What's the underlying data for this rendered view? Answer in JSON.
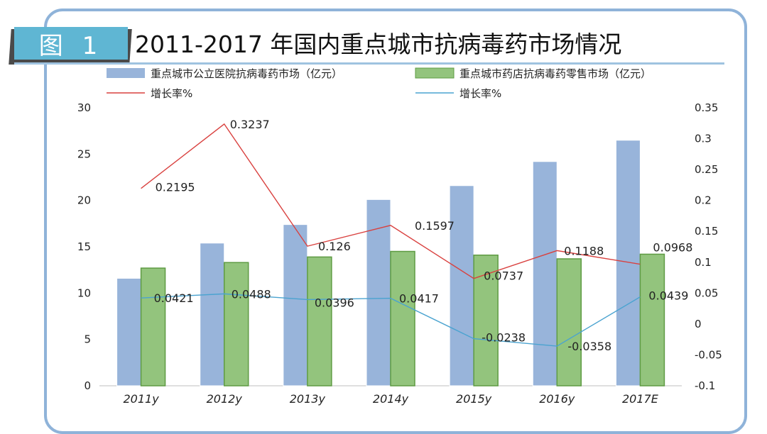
{
  "header": {
    "badge": "图 1",
    "title": "2011-2017 年国内重点城市抗病毒药市场情况"
  },
  "colors": {
    "hospital_bar": "#98b4da",
    "pharmacy_bar": "#93c47d",
    "pharmacy_bar_stroke": "#5e9b43",
    "red_line": "#d9413f",
    "blue_line": "#4aa3d0",
    "badge": "#5fb6d3",
    "frame": "#8fb3d9"
  },
  "chart_data": {
    "type": "bar",
    "categories": [
      "2011y",
      "2012y",
      "2013y",
      "2014y",
      "2015y",
      "2016y",
      "2017E"
    ],
    "series": [
      {
        "name": "重点城市公立医院抗病毒药市场（亿元）",
        "kind": "bar",
        "axis": "left",
        "values": [
          11.6,
          15.4,
          17.4,
          20.1,
          21.6,
          24.2,
          26.5
        ]
      },
      {
        "name": "重点城市药店抗病毒药零售市场（亿元）",
        "kind": "bar",
        "axis": "left",
        "values": [
          12.7,
          13.3,
          13.9,
          14.5,
          14.1,
          13.7,
          14.2
        ]
      },
      {
        "name": "增长率%",
        "kind": "line",
        "axis": "right",
        "color": "red",
        "values": [
          0.2195,
          0.3237,
          0.126,
          0.1597,
          0.0737,
          0.1188,
          0.0968
        ],
        "labels": [
          "0.2195",
          "0.3237",
          "0.126",
          "0.1597",
          "0.0737",
          "0.1188",
          "0.0968"
        ]
      },
      {
        "name": "增长率%",
        "kind": "line",
        "axis": "right",
        "color": "blue",
        "values": [
          0.0421,
          0.0488,
          0.0396,
          0.0417,
          -0.0238,
          -0.0358,
          0.0439
        ],
        "labels": [
          "0.0421",
          "0.0488",
          "0.0396",
          "0.0417",
          "-0.0238",
          "-0.0358",
          "0.0439"
        ]
      }
    ],
    "y_left": {
      "ylim": [
        0,
        30
      ],
      "ticks": [
        "0",
        "5",
        "10",
        "15",
        "20",
        "25",
        "30"
      ]
    },
    "y_right": {
      "ylim": [
        -0.1,
        0.35
      ],
      "ticks": [
        "-0.1",
        "-0.05",
        "0",
        "0.05",
        "0.1",
        "0.15",
        "0.2",
        "0.25",
        "0.3",
        "0.35"
      ]
    },
    "grid": false,
    "legend": "top"
  }
}
